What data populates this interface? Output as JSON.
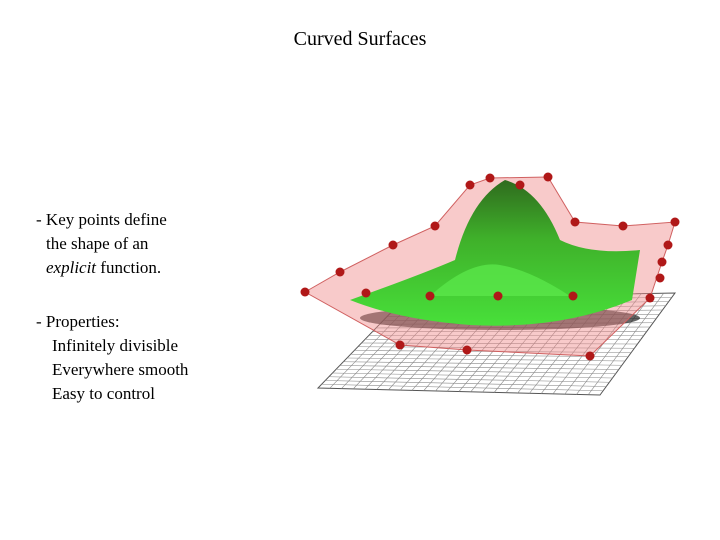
{
  "title": "Curved Surfaces",
  "bullets": [
    {
      "lines": [
        "- Key points define",
        "the shape of an",
        {
          "italic": "explicit",
          "rest": " function."
        }
      ]
    },
    {
      "lines": [
        "- Properties:",
        "Infinitely divisible",
        "Everywhere smooth",
        "Easy to control"
      ]
    }
  ]
}
